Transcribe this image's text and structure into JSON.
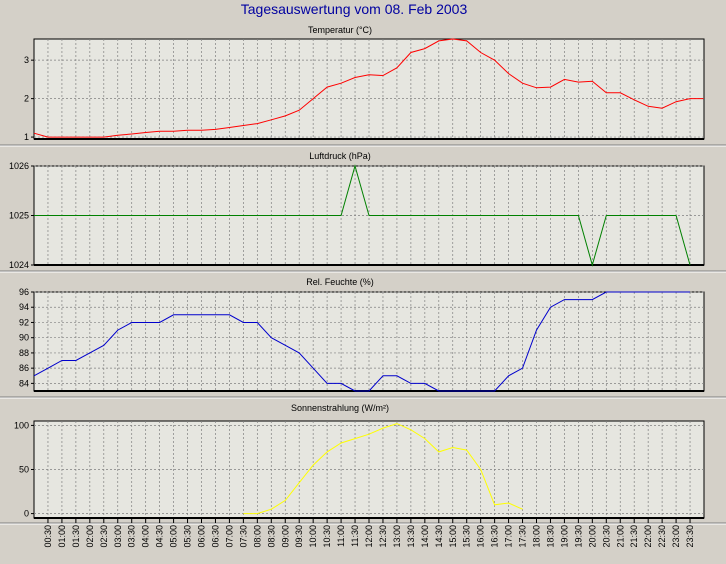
{
  "page_title": "Tagesauswertung vom 08. Feb 2003",
  "x_ticks": [
    "00:30",
    "01:00",
    "01:30",
    "02:00",
    "02:30",
    "03:00",
    "03:30",
    "04:00",
    "04:30",
    "05:00",
    "05:30",
    "06:00",
    "06:30",
    "07:00",
    "07:30",
    "08:00",
    "08:30",
    "09:00",
    "09:30",
    "10:00",
    "10:30",
    "11:00",
    "11:30",
    "12:00",
    "12:30",
    "13:00",
    "13:30",
    "14:00",
    "14:30",
    "15:00",
    "15:30",
    "16:00",
    "16:30",
    "17:00",
    "17:30",
    "18:00",
    "18:30",
    "19:00",
    "19:30",
    "20:00",
    "20:30",
    "21:00",
    "21:30",
    "22:00",
    "22:30",
    "23:00",
    "23:30"
  ],
  "colors": {
    "background": "#d4d0c8",
    "plot_area": "#e6e6e0",
    "title": "#0000a0",
    "temperature": "#ff0000",
    "pressure": "#008000",
    "humidity": "#0000cc",
    "radiation": "#ffff00"
  },
  "chart_data": [
    {
      "type": "line",
      "title": "Temperatur (°C)",
      "ylim": [
        0.95,
        3.55
      ],
      "yticks": [
        "1",
        "2",
        "3"
      ],
      "ytick_values": [
        1,
        2,
        3
      ],
      "grid": true,
      "series": [
        {
          "color": "#ff0000",
          "x": [
            "00:00",
            "00:30",
            "01:00",
            "01:30",
            "02:00",
            "02:30",
            "03:00",
            "03:30",
            "04:00",
            "04:30",
            "05:00",
            "05:30",
            "06:00",
            "06:30",
            "07:00",
            "07:30",
            "08:00",
            "08:30",
            "09:00",
            "09:30",
            "10:00",
            "10:30",
            "11:00",
            "11:30",
            "12:00",
            "12:30",
            "13:00",
            "13:30",
            "14:00",
            "14:30",
            "15:00",
            "15:30",
            "16:00",
            "16:30",
            "17:00",
            "17:30",
            "18:00",
            "18:30",
            "19:00",
            "19:30",
            "20:00",
            "20:30",
            "21:00",
            "21:30",
            "22:00",
            "22:30",
            "23:00",
            "23:30",
            "23:59"
          ],
          "values": [
            1.1,
            1.0,
            1.0,
            1.0,
            1.0,
            1.0,
            1.05,
            1.08,
            1.12,
            1.15,
            1.15,
            1.18,
            1.18,
            1.2,
            1.25,
            1.3,
            1.35,
            1.45,
            1.55,
            1.7,
            2.0,
            2.3,
            2.4,
            2.55,
            2.62,
            2.6,
            2.8,
            3.2,
            3.3,
            3.5,
            3.55,
            3.5,
            3.2,
            3.0,
            2.65,
            2.4,
            2.28,
            2.3,
            2.5,
            2.43,
            2.45,
            2.15,
            2.15,
            1.97,
            1.8,
            1.75,
            1.92,
            2.0,
            2.0
          ]
        }
      ]
    },
    {
      "type": "line",
      "title": "Luftdruck (hPa)",
      "ylim": [
        1024,
        1026
      ],
      "yticks": [
        "1024",
        "1025",
        "1026"
      ],
      "ytick_values": [
        1024,
        1025,
        1026
      ],
      "grid": true,
      "series": [
        {
          "color": "#008000",
          "x": [
            "00:00",
            "11:00",
            "11:30",
            "12:00",
            "19:30",
            "20:00",
            "20:30",
            "23:00",
            "23:30"
          ],
          "values": [
            1025,
            1025,
            1026,
            1025,
            1025,
            1024,
            1025,
            1025,
            1024
          ]
        }
      ]
    },
    {
      "type": "line",
      "title": "Rel. Feuchte (%)",
      "ylim": [
        83,
        96
      ],
      "yticks": [
        "84",
        "86",
        "88",
        "90",
        "92",
        "94",
        "96"
      ],
      "ytick_values": [
        84,
        86,
        88,
        90,
        92,
        94,
        96
      ],
      "grid": true,
      "series": [
        {
          "color": "#0000cc",
          "x": [
            "00:00",
            "00:30",
            "01:00",
            "01:30",
            "02:00",
            "02:30",
            "03:00",
            "03:30",
            "04:00",
            "04:30",
            "05:00",
            "05:30",
            "06:00",
            "06:30",
            "07:00",
            "07:30",
            "08:00",
            "08:30",
            "09:00",
            "09:30",
            "10:00",
            "10:30",
            "11:00",
            "11:30",
            "12:00",
            "12:30",
            "13:00",
            "13:30",
            "14:00",
            "14:30",
            "15:00",
            "15:30",
            "16:00",
            "16:30",
            "17:00",
            "17:30",
            "18:00",
            "18:30",
            "19:00",
            "19:30",
            "20:00",
            "20:30",
            "21:00",
            "21:30",
            "22:00",
            "22:30",
            "23:00",
            "23:30"
          ],
          "values": [
            85,
            86,
            87,
            87,
            88,
            89,
            91,
            92,
            92,
            92,
            93,
            93,
            93,
            93,
            93,
            92,
            92,
            90,
            89,
            88,
            86,
            84,
            84,
            83,
            83,
            85,
            85,
            84,
            84,
            83,
            83,
            83,
            83,
            83,
            85,
            86,
            91,
            94,
            95,
            95,
            95,
            96,
            96,
            96,
            96,
            96,
            96,
            96
          ]
        }
      ]
    },
    {
      "type": "line",
      "title": "Sonnenstrahlung (W/m²)",
      "ylim": [
        -5,
        105
      ],
      "yticks": [
        "0",
        "50",
        "100"
      ],
      "ytick_values": [
        0,
        50,
        100
      ],
      "grid": true,
      "series": [
        {
          "color": "#ffff00",
          "x": [
            "07:30",
            "08:00",
            "08:30",
            "09:00",
            "09:30",
            "10:00",
            "10:30",
            "11:00",
            "11:30",
            "12:00",
            "12:30",
            "13:00",
            "13:30",
            "14:00",
            "14:30",
            "15:00",
            "15:30",
            "16:00",
            "16:30",
            "17:00",
            "17:30"
          ],
          "values": [
            0,
            0,
            5,
            15,
            35,
            55,
            70,
            80,
            85,
            90,
            97,
            102,
            95,
            85,
            70,
            75,
            72,
            50,
            10,
            12,
            5
          ]
        }
      ]
    }
  ]
}
